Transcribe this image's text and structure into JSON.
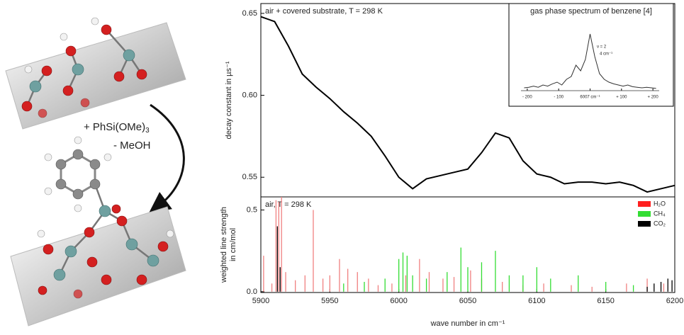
{
  "diagram": {
    "reagent": "+ PhSi(OMe)",
    "reagent_subscript": "3",
    "byproduct": "- MeOH"
  },
  "chart_data": [
    {
      "type": "line",
      "annotation": "air + covered substrate, T = 298 K",
      "ylabel": "decay constant in µs⁻¹",
      "x": [
        5900,
        5910,
        5920,
        5930,
        5940,
        5950,
        5960,
        5970,
        5980,
        5990,
        6000,
        6010,
        6020,
        6030,
        6040,
        6050,
        6060,
        6070,
        6080,
        6090,
        6100,
        6110,
        6120,
        6130,
        6140,
        6150,
        6160,
        6170,
        6180,
        6190,
        6200
      ],
      "series": [
        {
          "color": "#000000",
          "values": [
            0.648,
            0.645,
            0.63,
            0.613,
            0.605,
            0.598,
            0.59,
            0.583,
            0.575,
            0.563,
            0.55,
            0.543,
            0.549,
            0.551,
            0.553,
            0.555,
            0.565,
            0.577,
            0.574,
            0.56,
            0.552,
            0.55,
            0.546,
            0.547,
            0.547,
            0.546,
            0.547,
            0.545,
            0.541,
            0.543,
            0.545
          ]
        }
      ],
      "xlim": [
        5900,
        6200
      ],
      "ylim": [
        0.538,
        0.656
      ],
      "yticks": [
        {
          "value": 0.55,
          "label": "0.55"
        },
        {
          "value": 0.6,
          "label": "0.60"
        },
        {
          "value": 0.65,
          "label": "0.65"
        }
      ]
    },
    {
      "type": "stem",
      "annotation": "air, T = 298 K",
      "ylabel": [
        "weighted line strength",
        "in cm/mol"
      ],
      "xlabel": "wave number in cm⁻¹",
      "series": [
        {
          "name": "H₂O",
          "color": "#f08080",
          "x": [
            5902,
            5908,
            5911,
            5913,
            5915,
            5918,
            5925,
            5932,
            5938,
            5945,
            5950,
            5957,
            5963,
            5970,
            5978,
            5985,
            5995,
            6005,
            6015,
            6022,
            6032,
            6040,
            6052,
            6060,
            6075,
            6090,
            6105,
            6125,
            6140,
            6165,
            6180,
            6192
          ],
          "values": [
            0.22,
            0.05,
            0.56,
            0.55,
            0.58,
            0.12,
            0.07,
            0.1,
            0.5,
            0.08,
            0.1,
            0.2,
            0.14,
            0.12,
            0.08,
            0.04,
            0.05,
            0.1,
            0.2,
            0.12,
            0.08,
            0.09,
            0.13,
            0.08,
            0.06,
            0.04,
            0.05,
            0.04,
            0.03,
            0.05,
            0.08,
            0.05
          ]
        },
        {
          "name": "CH₄",
          "color": "#33dd33",
          "x": [
            5960,
            5975,
            5990,
            6000,
            6003,
            6006,
            6010,
            6020,
            6035,
            6045,
            6050,
            6060,
            6070,
            6080,
            6090,
            6100,
            6110,
            6130,
            6150,
            6170
          ],
          "values": [
            0.05,
            0.06,
            0.08,
            0.2,
            0.24,
            0.22,
            0.1,
            0.08,
            0.12,
            0.27,
            0.15,
            0.18,
            0.25,
            0.1,
            0.1,
            0.15,
            0.08,
            0.1,
            0.06,
            0.04
          ]
        },
        {
          "name": "CO₂",
          "color": "#000000",
          "x": [
            5912,
            5914,
            6180,
            6185,
            6190,
            6195,
            6198
          ],
          "values": [
            0.4,
            0.15,
            0.03,
            0.05,
            0.06,
            0.08,
            0.07
          ]
        }
      ],
      "xlim": [
        5900,
        6200
      ],
      "ylim": [
        -0.005,
        0.58
      ],
      "xticks": [
        5900,
        5950,
        6000,
        6050,
        6100,
        6150,
        6200
      ],
      "yticks": [
        {
          "value": 0,
          "label": "0.0"
        },
        {
          "value": 0.5,
          "label": "0.5"
        }
      ]
    },
    {
      "type": "line",
      "title": "gas phase spectrum of benzene [4]",
      "annotations": [
        "ν = 2",
        "4 cm⁻¹"
      ],
      "x": [
        -210,
        -195,
        -180,
        -165,
        -150,
        -135,
        -120,
        -105,
        -90,
        -75,
        -60,
        -45,
        -30,
        -15,
        0,
        15,
        30,
        45,
        60,
        75,
        90,
        105,
        120,
        135,
        150,
        165,
        180,
        195,
        210
      ],
      "series": [
        {
          "color": "#333333",
          "values": [
            0.05,
            0.06,
            0.08,
            0.06,
            0.1,
            0.08,
            0.12,
            0.15,
            0.1,
            0.2,
            0.25,
            0.45,
            0.35,
            0.55,
            1.0,
            0.6,
            0.3,
            0.2,
            0.15,
            0.12,
            0.1,
            0.08,
            0.1,
            0.07,
            0.06,
            0.05,
            0.06,
            0.05,
            0.04
          ]
        }
      ],
      "xlim": [
        -220,
        220
      ],
      "ylim": [
        0,
        1.1
      ],
      "xticks": [
        {
          "value": -200,
          "label": "- 200"
        },
        {
          "value": -100,
          "label": "- 100"
        },
        {
          "value": 0,
          "label": "6007 cm⁻¹"
        },
        {
          "value": 100,
          "label": "+ 100"
        },
        {
          "value": 200,
          "label": "+ 200"
        }
      ]
    }
  ]
}
